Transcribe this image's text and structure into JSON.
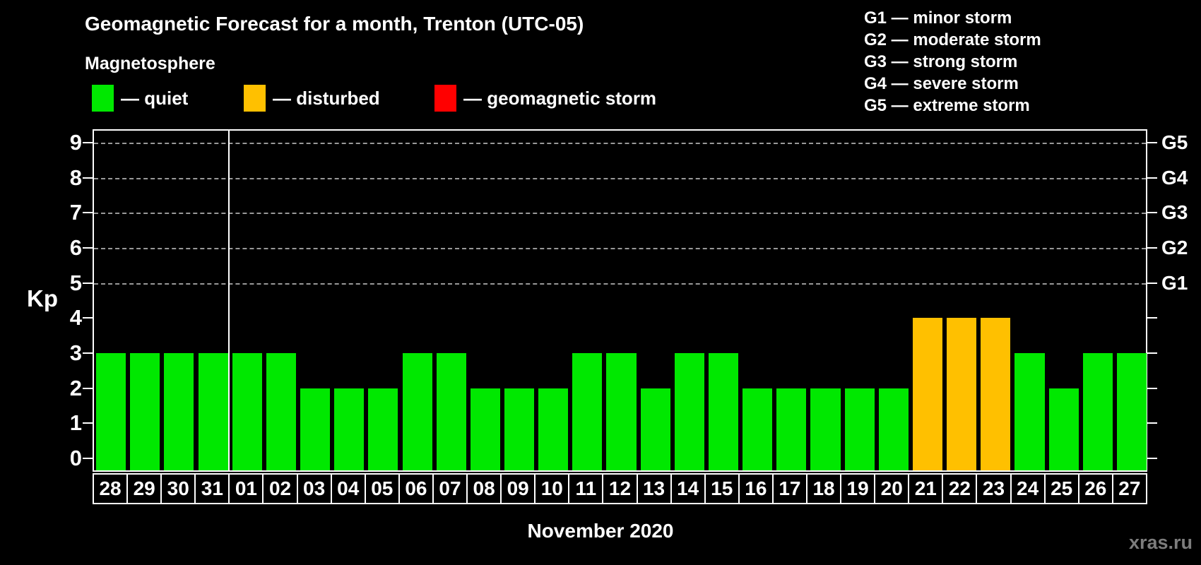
{
  "header": {
    "title": "Geomagnetic Forecast for a month, Trenton (UTC-05)",
    "subtitle": "Magnetosphere"
  },
  "legend": {
    "items": [
      {
        "key": "quiet",
        "label": "— quiet"
      },
      {
        "key": "disturbed",
        "label": "— disturbed"
      },
      {
        "key": "storm",
        "label": "— geomagnetic storm"
      }
    ]
  },
  "g_legend": {
    "items": [
      {
        "code": "G1",
        "label": "minor storm"
      },
      {
        "code": "G2",
        "label": "moderate storm"
      },
      {
        "code": "G3",
        "label": "strong storm"
      },
      {
        "code": "G4",
        "label": "severe storm"
      },
      {
        "code": "G5",
        "label": "extreme storm"
      }
    ]
  },
  "colors": {
    "quiet": "#00e800",
    "disturbed": "#ffc000",
    "storm": "#ff0000",
    "background": "#000000",
    "axis": "#ffffff",
    "grid": "#999999",
    "watermark": "#7d7d7d"
  },
  "chart_data": {
    "type": "bar",
    "title": "Geomagnetic Forecast for a month, Trenton (UTC-05)",
    "ylabel": "Kp",
    "xlabel": "November 2020",
    "ylim": [
      0,
      9
    ],
    "yticks": [
      0,
      1,
      2,
      3,
      4,
      5,
      6,
      7,
      8,
      9
    ],
    "gridlines_at": [
      5,
      6,
      7,
      8,
      9
    ],
    "grid": "dashed horizontal at G-storm levels only",
    "legend_position": "top",
    "categories": [
      "28",
      "29",
      "30",
      "31",
      "01",
      "02",
      "03",
      "04",
      "05",
      "06",
      "07",
      "08",
      "09",
      "10",
      "11",
      "12",
      "13",
      "14",
      "15",
      "16",
      "17",
      "18",
      "19",
      "20",
      "21",
      "22",
      "23",
      "24",
      "25",
      "26",
      "27"
    ],
    "values": [
      3,
      3,
      3,
      3,
      3,
      3,
      2,
      2,
      2,
      3,
      3,
      2,
      2,
      2,
      3,
      3,
      2,
      3,
      3,
      2,
      2,
      2,
      2,
      2,
      4,
      4,
      4,
      3,
      2,
      3,
      3
    ],
    "statuses": [
      "quiet",
      "quiet",
      "quiet",
      "quiet",
      "quiet",
      "quiet",
      "quiet",
      "quiet",
      "quiet",
      "quiet",
      "quiet",
      "quiet",
      "quiet",
      "quiet",
      "quiet",
      "quiet",
      "quiet",
      "quiet",
      "quiet",
      "quiet",
      "quiet",
      "quiet",
      "quiet",
      "quiet",
      "disturbed",
      "disturbed",
      "disturbed",
      "quiet",
      "quiet",
      "quiet",
      "quiet"
    ],
    "month_boundary_index": 4,
    "right_axis": [
      {
        "value": 5,
        "label": "G1"
      },
      {
        "value": 6,
        "label": "G2"
      },
      {
        "value": 7,
        "label": "G3"
      },
      {
        "value": 8,
        "label": "G4"
      },
      {
        "value": 9,
        "label": "G5"
      }
    ]
  },
  "footer": {
    "watermark": "xras.ru"
  }
}
